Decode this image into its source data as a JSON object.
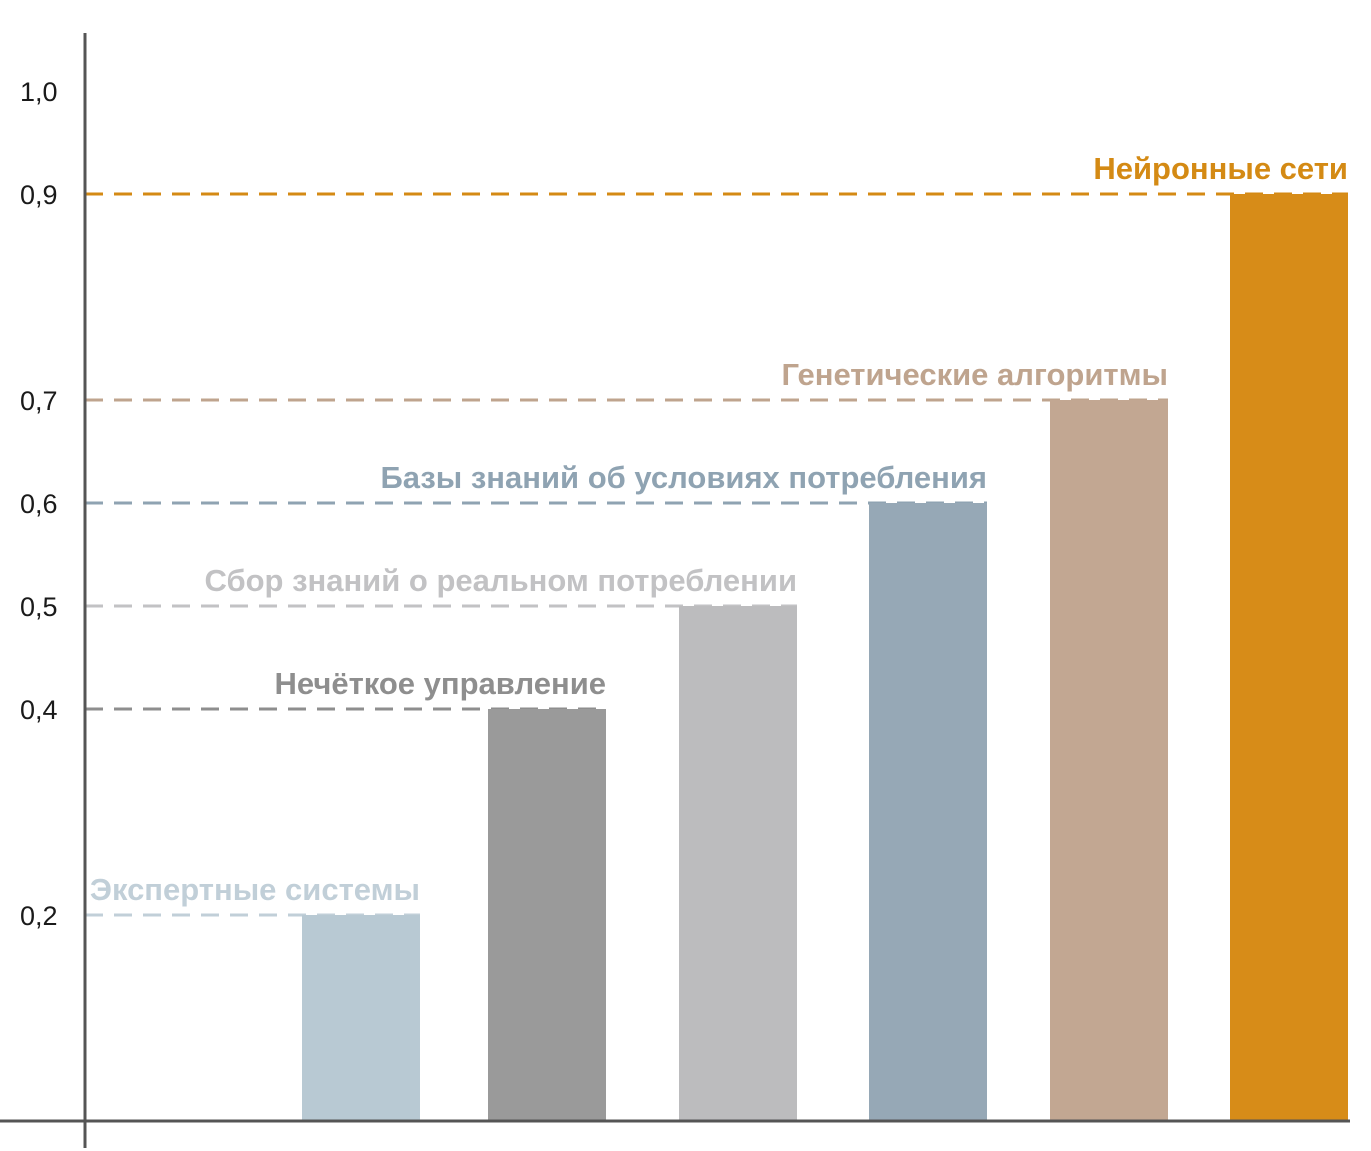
{
  "chart_data": {
    "type": "bar",
    "categories": [
      "Экспертные системы",
      "Нечёткое управление",
      "Сбор знаний о реальном потреблении",
      "Базы знаний об условиях потребления",
      "Генетические алгоритмы",
      "Нейронные сети"
    ],
    "values": [
      0.2,
      0.4,
      0.5,
      0.6,
      0.7,
      0.9
    ],
    "colors": [
      "#b8c9d3",
      "#9a9a9a",
      "#bcbcbe",
      "#96a8b6",
      "#c2a792",
      "#d78c18"
    ],
    "label_colors": [
      "#c1cfd8",
      "#8e8e8e",
      "#c2c2c4",
      "#8fa3b2",
      "#bfa48e",
      "#d48a14"
    ],
    "y_ticks": [
      "0,2",
      "0,4",
      "0,5",
      "0,6",
      "0,7",
      "0,9",
      "1,0"
    ],
    "y_tick_values": [
      0.2,
      0.4,
      0.5,
      0.6,
      0.7,
      0.9,
      1.0
    ],
    "ylim": [
      0,
      1.0
    ],
    "title": "",
    "xlabel": "",
    "ylabel": "",
    "grid": false,
    "reference_lines": "dashed"
  }
}
